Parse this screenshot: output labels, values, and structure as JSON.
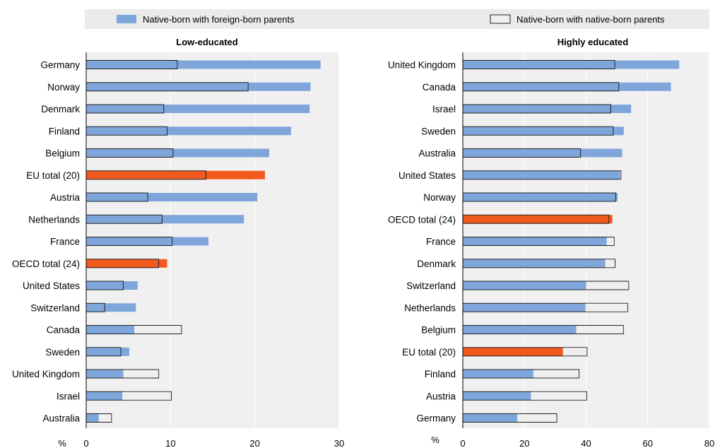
{
  "legend": {
    "foreign_label": "Native-born with foreign-born parents",
    "native_label": "Native-born with native-born parents",
    "placement": "top"
  },
  "colors": {
    "foreign": "#7fa6da",
    "highlight": "#f05a1e",
    "native_fill": "#efefef",
    "native_stroke": "#222222",
    "panel_bg": "#f0f0f0",
    "grid": "#ffffff",
    "legend_bg": "#ebebeb"
  },
  "unit_label": "%",
  "chart_data": [
    {
      "type": "bar",
      "orientation": "horizontal",
      "title": "Low-educated",
      "xlabel": "%",
      "xlim": [
        0,
        30
      ],
      "xticks": [
        0,
        10,
        20,
        30
      ],
      "grid": true,
      "highlighted": [
        "EU total (20)",
        "OECD total (24)"
      ],
      "categories": [
        "Germany",
        "Norway",
        "Denmark",
        "Finland",
        "Belgium",
        "EU total (20)",
        "Austria",
        "Netherlands",
        "France",
        "OECD total (24)",
        "United States",
        "Switzerland",
        "Canada",
        "Sweden",
        "United Kingdom",
        "Israel",
        "Australia"
      ],
      "series": [
        {
          "name": "Native-born with foreign-born parents",
          "values": [
            27.8,
            26.6,
            26.5,
            24.3,
            21.7,
            21.2,
            20.3,
            18.7,
            14.5,
            9.6,
            6.1,
            5.9,
            5.7,
            5.1,
            4.4,
            4.3,
            1.5
          ]
        },
        {
          "name": "Native-born with native-born parents",
          "values": [
            10.8,
            19.2,
            9.2,
            9.6,
            10.3,
            14.2,
            7.3,
            9.0,
            10.2,
            8.6,
            4.4,
            2.2,
            11.3,
            4.1,
            8.6,
            10.1,
            3.0
          ]
        }
      ]
    },
    {
      "type": "bar",
      "orientation": "horizontal",
      "title": "Highly educated",
      "xlabel": "%",
      "xlim": [
        0,
        80
      ],
      "xticks": [
        0,
        20,
        40,
        60,
        80
      ],
      "grid": true,
      "highlighted": [
        "OECD total (24)",
        "EU total (20)"
      ],
      "categories": [
        "United Kingdom",
        "Canada",
        "Israel",
        "Sweden",
        "Australia",
        "United States",
        "Norway",
        "OECD total (24)",
        "France",
        "Denmark",
        "Switzerland",
        "Netherlands",
        "Belgium",
        "EU total (20)",
        "Finland",
        "Austria",
        "Germany"
      ],
      "series": [
        {
          "name": "Native-born with foreign-born parents",
          "values": [
            70.2,
            67.5,
            54.6,
            52.2,
            51.7,
            51.0,
            50.2,
            48.5,
            46.7,
            46.2,
            40.0,
            39.8,
            36.8,
            32.5,
            22.9,
            22.1,
            17.7
          ]
        },
        {
          "name": "Native-born with native-born parents",
          "values": [
            49.3,
            50.6,
            48.0,
            48.8,
            38.2,
            51.3,
            49.6,
            47.4,
            49.1,
            49.4,
            53.8,
            53.5,
            52.1,
            40.3,
            37.7,
            40.2,
            30.5
          ]
        }
      ]
    }
  ]
}
